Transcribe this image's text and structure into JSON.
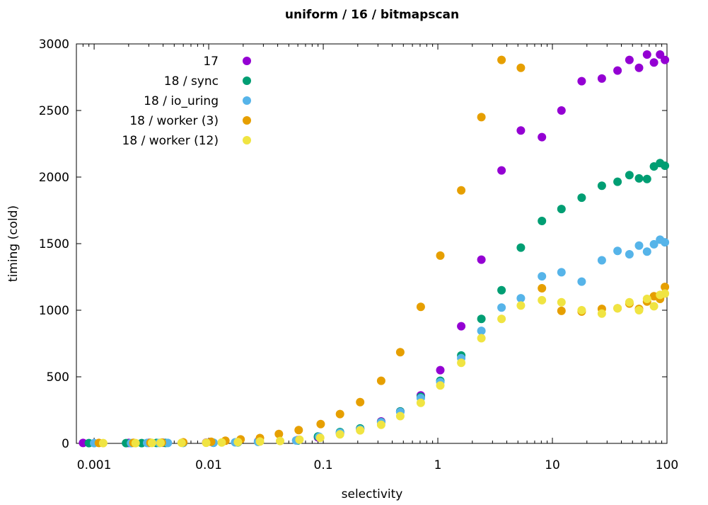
{
  "chart_data": {
    "type": "scatter",
    "title": "uniform / 16 / bitmapscan",
    "xlabel": "selectivity",
    "ylabel": "timing (cold)",
    "xscale": "log",
    "xlim": [
      0.0007,
      100
    ],
    "ylim": [
      0,
      3000
    ],
    "x_ticks": [
      {
        "value": 0.001,
        "label": "0.001"
      },
      {
        "value": 0.01,
        "label": "0.01"
      },
      {
        "value": 0.1,
        "label": "0.1"
      },
      {
        "value": 1,
        "label": "1"
      },
      {
        "value": 10,
        "label": "10"
      },
      {
        "value": 100,
        "label": "100"
      }
    ],
    "y_ticks": [
      {
        "value": 0,
        "label": "0"
      },
      {
        "value": 500,
        "label": "500"
      },
      {
        "value": 1000,
        "label": "1000"
      },
      {
        "value": 1500,
        "label": "1500"
      },
      {
        "value": 2000,
        "label": "2000"
      },
      {
        "value": 2500,
        "label": "2500"
      },
      {
        "value": 3000,
        "label": "3000"
      }
    ],
    "legend_position": "top-left",
    "series": [
      {
        "name": "17",
        "color": "#9400d3",
        "points": [
          [
            0.0008,
            3
          ],
          [
            0.002,
            3
          ],
          [
            0.003,
            4
          ],
          [
            0.004,
            5
          ],
          [
            0.0095,
            6
          ],
          [
            0.018,
            10
          ],
          [
            0.027,
            15
          ],
          [
            0.06,
            25
          ],
          [
            0.09,
            45
          ],
          [
            0.14,
            75
          ],
          [
            0.21,
            110
          ],
          [
            0.32,
            165
          ],
          [
            0.47,
            240
          ],
          [
            0.71,
            360
          ],
          [
            1.05,
            550
          ],
          [
            1.6,
            880
          ],
          [
            2.4,
            1380
          ],
          [
            3.6,
            2050
          ],
          [
            5.3,
            2350
          ],
          [
            8.1,
            2300
          ],
          [
            12,
            2500
          ],
          [
            18,
            2720
          ],
          [
            27,
            2740
          ],
          [
            37,
            2800
          ],
          [
            47,
            2880
          ],
          [
            57,
            2820
          ],
          [
            67,
            2920
          ],
          [
            77,
            2860
          ],
          [
            87,
            2920
          ],
          [
            96,
            2880
          ]
        ]
      },
      {
        "name": "18 / sync",
        "color": "#009e73",
        "points": [
          [
            0.0009,
            2
          ],
          [
            0.0019,
            2
          ],
          [
            0.0026,
            2
          ],
          [
            0.0035,
            3
          ],
          [
            0.0042,
            3
          ],
          [
            0.006,
            4
          ],
          [
            0.011,
            5
          ],
          [
            0.018,
            8
          ],
          [
            0.027,
            12
          ],
          [
            0.06,
            22
          ],
          [
            0.09,
            52
          ],
          [
            0.14,
            85
          ],
          [
            0.21,
            112
          ],
          [
            0.32,
            160
          ],
          [
            0.47,
            240
          ],
          [
            0.71,
            350
          ],
          [
            1.05,
            470
          ],
          [
            1.6,
            660
          ],
          [
            2.4,
            935
          ],
          [
            3.6,
            1150
          ],
          [
            5.3,
            1470
          ],
          [
            8.1,
            1670
          ],
          [
            12,
            1760
          ],
          [
            18,
            1845
          ],
          [
            27,
            1935
          ],
          [
            37,
            1965
          ],
          [
            47,
            2015
          ],
          [
            57,
            1990
          ],
          [
            67,
            1985
          ],
          [
            77,
            2080
          ],
          [
            87,
            2105
          ],
          [
            96,
            2085
          ]
        ]
      },
      {
        "name": "18 / io_uring",
        "color": "#56b4e9",
        "points": [
          [
            0.001,
            2
          ],
          [
            0.0021,
            2
          ],
          [
            0.0029,
            3
          ],
          [
            0.0037,
            3
          ],
          [
            0.0044,
            3
          ],
          [
            0.006,
            4
          ],
          [
            0.011,
            5
          ],
          [
            0.017,
            8
          ],
          [
            0.027,
            12
          ],
          [
            0.058,
            22
          ],
          [
            0.092,
            50
          ],
          [
            0.14,
            80
          ],
          [
            0.21,
            105
          ],
          [
            0.32,
            158
          ],
          [
            0.47,
            235
          ],
          [
            0.71,
            340
          ],
          [
            1.05,
            460
          ],
          [
            1.6,
            640
          ],
          [
            2.4,
            845
          ],
          [
            3.6,
            1020
          ],
          [
            5.3,
            1090
          ],
          [
            8.1,
            1255
          ],
          [
            12,
            1285
          ],
          [
            18,
            1215
          ],
          [
            27,
            1375
          ],
          [
            37,
            1445
          ],
          [
            47,
            1420
          ],
          [
            57,
            1485
          ],
          [
            67,
            1440
          ],
          [
            77,
            1495
          ],
          [
            87,
            1530
          ],
          [
            96,
            1510
          ]
        ]
      },
      {
        "name": "18 / worker (3)",
        "color": "#e69f00",
        "points": [
          [
            0.0011,
            3
          ],
          [
            0.0022,
            4
          ],
          [
            0.0031,
            5
          ],
          [
            0.0039,
            6
          ],
          [
            0.006,
            8
          ],
          [
            0.0105,
            12
          ],
          [
            0.014,
            20
          ],
          [
            0.019,
            30
          ],
          [
            0.028,
            40
          ],
          [
            0.041,
            70
          ],
          [
            0.061,
            100
          ],
          [
            0.095,
            145
          ],
          [
            0.14,
            220
          ],
          [
            0.21,
            310
          ],
          [
            0.32,
            470
          ],
          [
            0.47,
            685
          ],
          [
            0.71,
            1025
          ],
          [
            1.05,
            1410
          ],
          [
            1.6,
            1900
          ],
          [
            2.4,
            2450
          ],
          [
            3.6,
            2880
          ],
          [
            5.3,
            2820
          ],
          [
            8.1,
            1165
          ],
          [
            12,
            995
          ],
          [
            18,
            990
          ],
          [
            27,
            1010
          ],
          [
            37,
            1015
          ],
          [
            47,
            1050
          ],
          [
            57,
            1010
          ],
          [
            67,
            1065
          ],
          [
            77,
            1105
          ],
          [
            87,
            1085
          ],
          [
            96,
            1175
          ]
        ]
      },
      {
        "name": "18 / worker (12)",
        "color": "#f0e442",
        "points": [
          [
            0.0012,
            2
          ],
          [
            0.0023,
            2
          ],
          [
            0.0032,
            3
          ],
          [
            0.0038,
            4
          ],
          [
            0.0058,
            4
          ],
          [
            0.0095,
            5
          ],
          [
            0.013,
            7
          ],
          [
            0.018,
            10
          ],
          [
            0.028,
            14
          ],
          [
            0.042,
            18
          ],
          [
            0.062,
            28
          ],
          [
            0.094,
            42
          ],
          [
            0.14,
            68
          ],
          [
            0.21,
            98
          ],
          [
            0.32,
            140
          ],
          [
            0.47,
            205
          ],
          [
            0.71,
            305
          ],
          [
            1.05,
            435
          ],
          [
            1.6,
            605
          ],
          [
            2.4,
            790
          ],
          [
            3.6,
            935
          ],
          [
            5.3,
            1035
          ],
          [
            8.1,
            1075
          ],
          [
            12,
            1060
          ],
          [
            18,
            1000
          ],
          [
            27,
            975
          ],
          [
            37,
            1015
          ],
          [
            47,
            1060
          ],
          [
            57,
            1000
          ],
          [
            67,
            1085
          ],
          [
            77,
            1030
          ],
          [
            87,
            1115
          ],
          [
            96,
            1125
          ]
        ]
      }
    ]
  }
}
